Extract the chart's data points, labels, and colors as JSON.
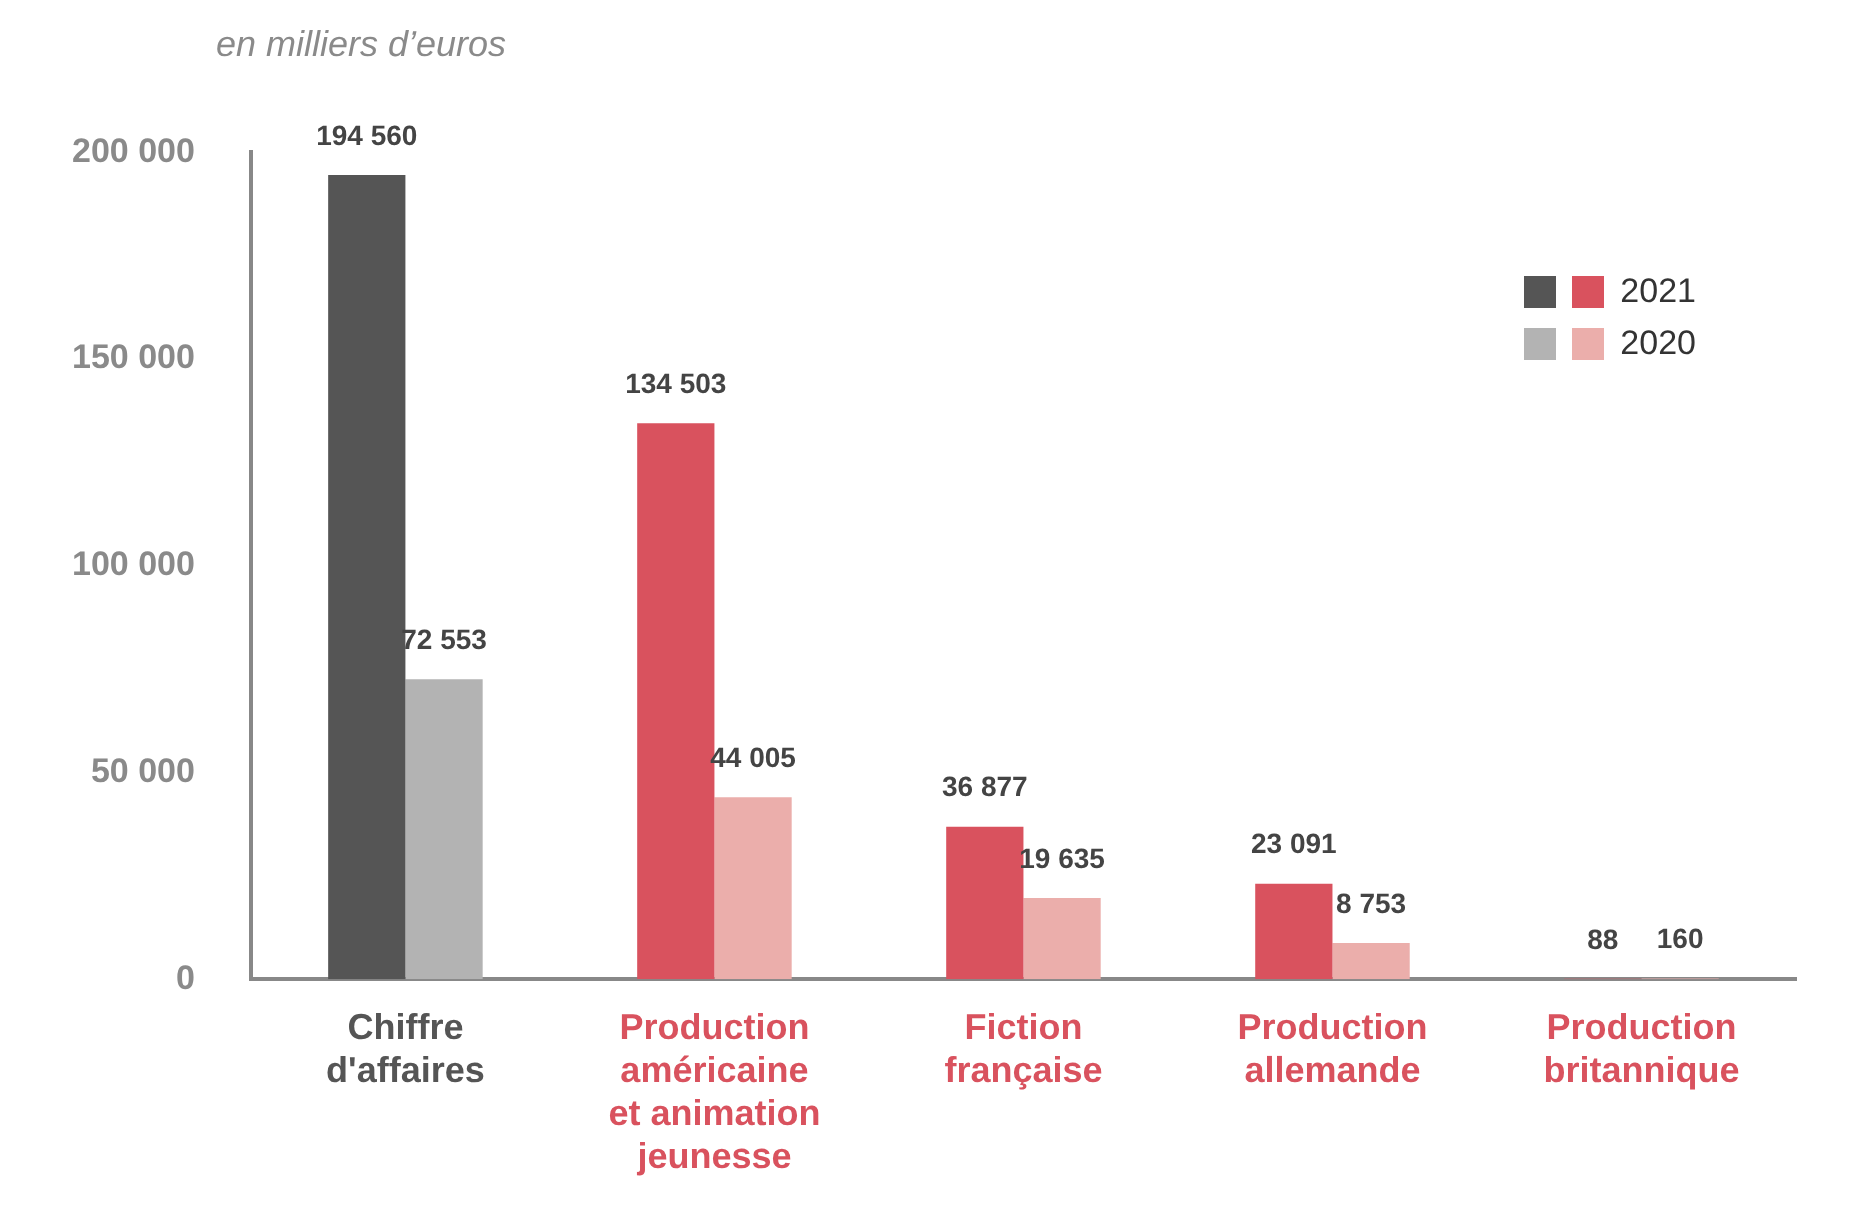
{
  "chart_data": {
    "type": "bar",
    "ylabel": "en milliers d’euros",
    "categories": [
      "Chiffre d'affaires",
      "Production américaine et animation jeunesse",
      "Fiction française",
      "Production allemande",
      "Production britannique"
    ],
    "series": [
      {
        "name": "2021",
        "colors": [
          "#555555",
          "#d9525e",
          "#d9525e",
          "#d9525e",
          "#d9525e"
        ],
        "values": [
          194560,
          134503,
          36877,
          23091,
          88
        ],
        "value_labels": [
          "194 560",
          "134 503",
          "36 877",
          "23 091",
          "88"
        ]
      },
      {
        "name": "2020",
        "colors": [
          "#b3b3b3",
          "#ebaeab",
          "#ebaeab",
          "#ebaeab",
          "#ebaeab"
        ],
        "values": [
          72553,
          44005,
          19635,
          8753,
          160
        ],
        "value_labels": [
          "72 553",
          "44 005",
          "19 635",
          "8 753",
          "160"
        ]
      }
    ],
    "ylim": [
      0,
      200000
    ],
    "yticks": [
      {
        "value": 0,
        "label": "0"
      },
      {
        "value": 50000,
        "label": "50 000"
      },
      {
        "value": 100000,
        "label": "100 000"
      },
      {
        "value": 150000,
        "label": "150 000"
      },
      {
        "value": 200000,
        "label": "200 000"
      }
    ],
    "grid": false,
    "legend": "top right"
  }
}
